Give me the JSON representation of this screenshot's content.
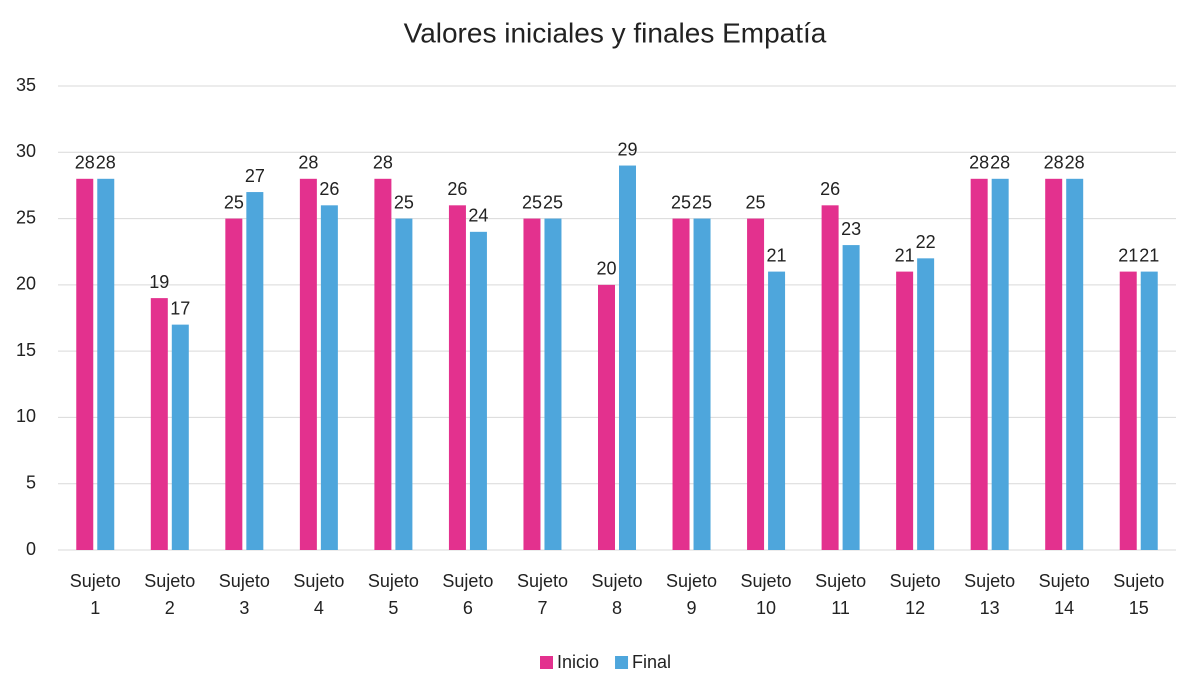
{
  "chart_data": {
    "type": "bar",
    "title": "Valores iniciales y finales  Empatía",
    "categories": [
      "Sujeto 1",
      "Sujeto 2",
      "Sujeto 3",
      "Sujeto 4",
      "Sujeto 5",
      "Sujeto 6",
      "Sujeto 7",
      "Sujeto 8",
      "Sujeto 9",
      "Sujeto 10",
      "Sujeto 11",
      "Sujeto 12",
      "Sujeto 13",
      "Sujeto 14",
      "Sujeto 15"
    ],
    "series": [
      {
        "name": "Inicio",
        "color": "#e3318e",
        "values": [
          28,
          19,
          25,
          28,
          28,
          26,
          25,
          20,
          25,
          25,
          26,
          21,
          28,
          28,
          21
        ]
      },
      {
        "name": "Final",
        "color": "#4ea6dc",
        "values": [
          28,
          17,
          27,
          26,
          25,
          24,
          25,
          29,
          25,
          21,
          23,
          22,
          28,
          28,
          21
        ]
      }
    ],
    "ylim": [
      0,
      35
    ],
    "yticks": [
      0,
      5,
      10,
      15,
      20,
      25,
      30,
      35
    ],
    "grid": true,
    "legend": "bottom"
  }
}
